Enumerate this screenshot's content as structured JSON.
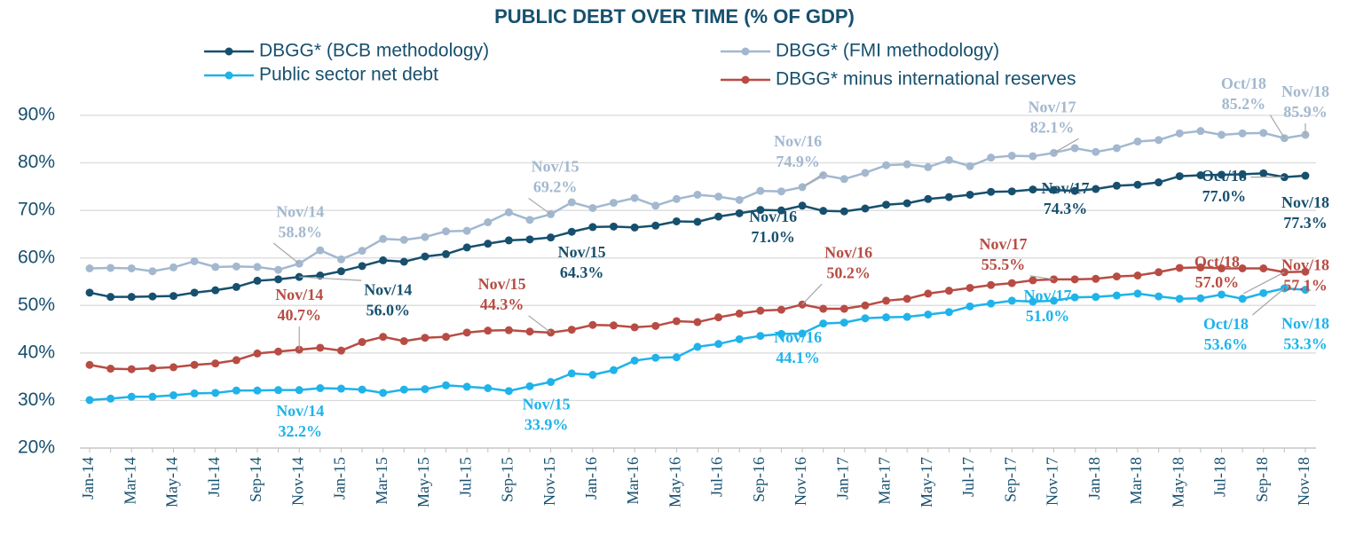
{
  "chart_data": {
    "type": "line",
    "title": "PUBLIC DEBT OVER TIME (% OF GDP)",
    "categories": [
      "Jan-14",
      null,
      "Mar-14",
      null,
      "May-14",
      null,
      "Jul-14",
      null,
      "Sep-14",
      null,
      "Nov-14",
      null,
      "Jan-15",
      null,
      "Mar-15",
      null,
      "May-15",
      null,
      "Jul-15",
      null,
      "Sep-15",
      null,
      "Nov-15",
      null,
      "Jan-16",
      null,
      "Mar-16",
      null,
      "May-16",
      null,
      "Jul-16",
      null,
      "Sep-16",
      null,
      "Nov-16",
      null,
      "Jan-17",
      null,
      "Mar-17",
      null,
      "May-17",
      null,
      "Jul-17",
      null,
      "Sep-17",
      null,
      "Nov-17",
      null,
      "Jan-18",
      null,
      "Mar-18",
      null,
      "May-18",
      null,
      "Jul-18",
      null,
      "Sep-18",
      null,
      "Nov-18"
    ],
    "ylim": [
      20,
      90
    ],
    "yticks": [
      {
        "value": 20,
        "label": "20%"
      },
      {
        "value": 30,
        "label": "30%"
      },
      {
        "value": 40,
        "label": "40%"
      },
      {
        "value": 50,
        "label": "50%"
      },
      {
        "value": 60,
        "label": "60%"
      },
      {
        "value": 70,
        "label": "70%"
      },
      {
        "value": 80,
        "label": "80%"
      },
      {
        "value": 90,
        "label": "90%"
      }
    ],
    "grid": true,
    "series": [
      {
        "name": "DBGG* (BCB methodology)",
        "color": "#17506e",
        "values": [
          52.7,
          51.8,
          51.8,
          51.9,
          52.0,
          52.7,
          53.2,
          53.9,
          55.2,
          55.5,
          56.0,
          56.3,
          57.2,
          58.3,
          59.5,
          59.2,
          60.3,
          60.8,
          62.2,
          63.0,
          63.7,
          63.9,
          64.3,
          65.5,
          66.5,
          66.6,
          66.4,
          66.8,
          67.7,
          67.6,
          68.7,
          69.4,
          70.1,
          70.0,
          71.0,
          69.9,
          69.8,
          70.4,
          71.2,
          71.5,
          72.4,
          72.8,
          73.3,
          73.9,
          74.0,
          74.4,
          74.3,
          74.1,
          74.5,
          75.2,
          75.4,
          75.9,
          77.2,
          77.4,
          77.5,
          77.6,
          77.8,
          77.0,
          77.3
        ],
        "date_labels": [
          null,
          null,
          null,
          null,
          null,
          null,
          null,
          null,
          null,
          null,
          "Nov/14",
          null,
          null,
          null,
          null,
          null,
          null,
          null,
          null,
          null,
          null,
          null,
          "Nov/15",
          null,
          null,
          null,
          null,
          null,
          null,
          null,
          null,
          null,
          null,
          null,
          "Nov/16",
          null,
          null,
          null,
          null,
          null,
          null,
          null,
          null,
          null,
          null,
          null,
          "Nov/17",
          null,
          null,
          null,
          null,
          null,
          null,
          null,
          null,
          null,
          null,
          "Oct/18",
          "Nov/18"
        ],
        "value_labels": [
          null,
          null,
          null,
          null,
          null,
          null,
          null,
          null,
          null,
          null,
          "56.0%",
          null,
          null,
          null,
          null,
          null,
          null,
          null,
          null,
          null,
          null,
          null,
          "64.3%",
          null,
          null,
          null,
          null,
          null,
          null,
          null,
          null,
          null,
          null,
          null,
          "71.0%",
          null,
          null,
          null,
          null,
          null,
          null,
          null,
          null,
          null,
          null,
          null,
          "74.3%",
          null,
          null,
          null,
          null,
          null,
          null,
          null,
          null,
          null,
          null,
          "77.0%",
          "77.3%"
        ]
      },
      {
        "name": "DBGG* (FMI methodology)",
        "color": "#a3b8cf",
        "values": [
          57.8,
          57.9,
          57.8,
          57.2,
          58.0,
          59.3,
          58.1,
          58.2,
          58.1,
          57.5,
          58.8,
          61.6,
          59.7,
          61.5,
          64.0,
          63.8,
          64.4,
          65.6,
          65.7,
          67.5,
          69.6,
          68.0,
          69.2,
          71.7,
          70.5,
          71.6,
          72.6,
          71.0,
          72.4,
          73.3,
          72.9,
          72.2,
          74.1,
          74.0,
          74.9,
          77.4,
          76.6,
          77.9,
          79.5,
          79.7,
          79.1,
          80.6,
          79.3,
          81.1,
          81.5,
          81.4,
          82.1,
          83.1,
          82.3,
          83.1,
          84.5,
          84.8,
          86.2,
          86.7,
          85.9,
          86.2,
          86.3,
          85.2,
          85.9
        ],
        "date_labels": [
          null,
          null,
          null,
          null,
          null,
          null,
          null,
          null,
          null,
          null,
          "Nov/14",
          null,
          null,
          null,
          null,
          null,
          null,
          null,
          null,
          null,
          null,
          null,
          "Nov/15",
          null,
          null,
          null,
          null,
          null,
          null,
          null,
          null,
          null,
          null,
          null,
          "Nov/16",
          null,
          null,
          null,
          null,
          null,
          null,
          null,
          null,
          null,
          null,
          null,
          "Nov/17",
          null,
          null,
          null,
          null,
          null,
          null,
          null,
          null,
          null,
          null,
          "Oct/18",
          "Nov/18"
        ],
        "value_labels": [
          null,
          null,
          null,
          null,
          null,
          null,
          null,
          null,
          null,
          null,
          "58.8%",
          null,
          null,
          null,
          null,
          null,
          null,
          null,
          null,
          null,
          null,
          null,
          "69.2%",
          null,
          null,
          null,
          null,
          null,
          null,
          null,
          null,
          null,
          null,
          null,
          "74.9%",
          null,
          null,
          null,
          null,
          null,
          null,
          null,
          null,
          null,
          null,
          null,
          "82.1%",
          null,
          null,
          null,
          null,
          null,
          null,
          null,
          null,
          null,
          null,
          "85.2%",
          "85.9%"
        ]
      },
      {
        "name": "Public sector net debt",
        "color": "#1fb3ea",
        "values": [
          30.1,
          30.4,
          30.8,
          30.8,
          31.1,
          31.5,
          31.6,
          32.1,
          32.1,
          32.2,
          32.2,
          32.6,
          32.5,
          32.3,
          31.6,
          32.3,
          32.4,
          33.2,
          32.9,
          32.6,
          32.0,
          33.0,
          33.9,
          35.7,
          35.4,
          36.4,
          38.4,
          39.0,
          39.1,
          41.3,
          41.9,
          42.9,
          43.6,
          44.0,
          44.1,
          46.2,
          46.4,
          47.3,
          47.5,
          47.6,
          48.1,
          48.6,
          49.8,
          50.4,
          51.0,
          50.8,
          51.0,
          51.7,
          51.8,
          52.1,
          52.5,
          51.9,
          51.4,
          51.5,
          52.3,
          51.4,
          52.6,
          53.6,
          53.3
        ],
        "date_labels": [
          null,
          null,
          null,
          null,
          null,
          null,
          null,
          null,
          null,
          null,
          "Nov/14",
          null,
          null,
          null,
          null,
          null,
          null,
          null,
          null,
          null,
          null,
          null,
          "Nov/15",
          null,
          null,
          null,
          null,
          null,
          null,
          null,
          null,
          null,
          null,
          null,
          "Nov/16",
          null,
          null,
          null,
          null,
          null,
          null,
          null,
          null,
          null,
          null,
          null,
          "Nov/17",
          null,
          null,
          null,
          null,
          null,
          null,
          null,
          null,
          null,
          null,
          "Oct/18",
          "Nov/18"
        ],
        "value_labels": [
          null,
          null,
          null,
          null,
          null,
          null,
          null,
          null,
          null,
          null,
          "32.2%",
          null,
          null,
          null,
          null,
          null,
          null,
          null,
          null,
          null,
          null,
          null,
          "33.9%",
          null,
          null,
          null,
          null,
          null,
          null,
          null,
          null,
          null,
          null,
          null,
          "44.1%",
          null,
          null,
          null,
          null,
          null,
          null,
          null,
          null,
          null,
          null,
          null,
          "51.0%",
          null,
          null,
          null,
          null,
          null,
          null,
          null,
          null,
          null,
          null,
          "53.6%",
          "53.3%"
        ]
      },
      {
        "name": "DBGG* minus international reserves",
        "color": "#b84c44",
        "values": [
          37.5,
          36.7,
          36.6,
          36.8,
          37.0,
          37.5,
          37.8,
          38.5,
          39.9,
          40.3,
          40.7,
          41.1,
          40.5,
          42.3,
          43.4,
          42.5,
          43.2,
          43.4,
          44.3,
          44.7,
          44.8,
          44.5,
          44.3,
          44.9,
          45.9,
          45.8,
          45.4,
          45.7,
          46.7,
          46.5,
          47.5,
          48.3,
          48.9,
          49.1,
          50.2,
          49.3,
          49.3,
          50.0,
          51.0,
          51.4,
          52.5,
          53.1,
          53.7,
          54.3,
          54.7,
          55.3,
          55.5,
          55.5,
          55.6,
          56.1,
          56.3,
          57.0,
          57.9,
          58.0,
          57.8,
          57.8,
          57.8,
          57.0,
          57.1
        ],
        "date_labels": [
          null,
          null,
          null,
          null,
          null,
          null,
          null,
          null,
          null,
          null,
          "Nov/14",
          null,
          null,
          null,
          null,
          null,
          null,
          null,
          null,
          null,
          null,
          null,
          "Nov/15",
          null,
          null,
          null,
          null,
          null,
          null,
          null,
          null,
          null,
          null,
          null,
          "Nov/16",
          null,
          null,
          null,
          null,
          null,
          null,
          null,
          null,
          null,
          null,
          null,
          "Nov/17",
          null,
          null,
          null,
          null,
          null,
          null,
          null,
          null,
          null,
          null,
          "Oct/18",
          "Nov/18"
        ],
        "value_labels": [
          null,
          null,
          null,
          null,
          null,
          null,
          null,
          null,
          null,
          null,
          "40.7%",
          null,
          null,
          null,
          null,
          null,
          null,
          null,
          null,
          null,
          null,
          null,
          "44.3%",
          null,
          null,
          null,
          null,
          null,
          null,
          null,
          null,
          null,
          null,
          null,
          "50.2%",
          null,
          null,
          null,
          null,
          null,
          null,
          null,
          null,
          null,
          null,
          null,
          "55.5%",
          null,
          null,
          null,
          null,
          null,
          null,
          null,
          null,
          null,
          null,
          "57.0%",
          "57.1%"
        ]
      }
    ]
  }
}
